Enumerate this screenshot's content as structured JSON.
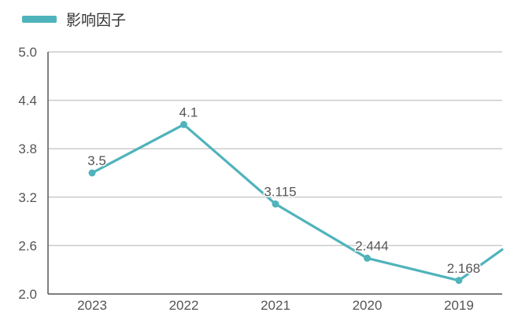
{
  "chart_data": {
    "type": "line",
    "categories": [
      "2023",
      "2022",
      "2021",
      "2020",
      "2019"
    ],
    "series": [
      {
        "name": "影响因子",
        "values": [
          3.5,
          4.1,
          3.115,
          2.444,
          2.168
        ],
        "value_labels": [
          "3.5",
          "4.1",
          "3.115",
          "2.444",
          "2.168"
        ],
        "trailing_value_approx": 2.55
      }
    ],
    "title": "",
    "xlabel": "",
    "ylabel": "",
    "ylim": [
      2.0,
      5.0
    ],
    "yticks": [
      "5.0",
      "4.4",
      "3.8",
      "3.2",
      "2.6",
      "2.0"
    ],
    "grid": true,
    "legend_position": "top-left"
  },
  "colors": {
    "series": "#4fb3bb",
    "grid": "#cccccc",
    "axis": "#555555",
    "text": "#555555"
  }
}
